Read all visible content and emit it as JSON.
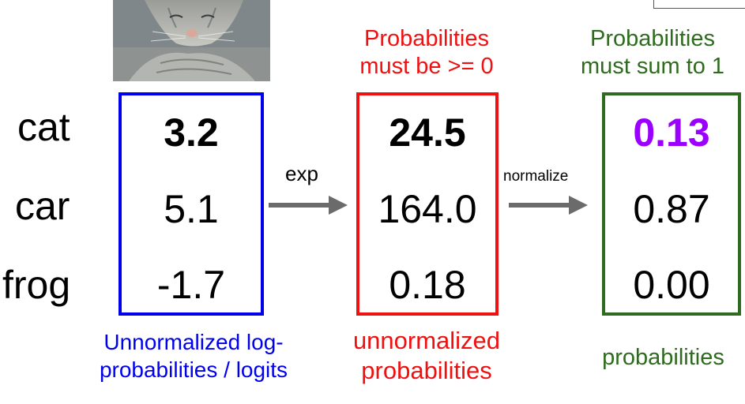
{
  "rows": [
    "cat",
    "car",
    "frog"
  ],
  "logits": [
    "3.2",
    "5.1",
    "-1.7"
  ],
  "exp_values": [
    "24.5",
    "164.0",
    "0.18"
  ],
  "probabilities": [
    "0.13",
    "0.87",
    "0.00"
  ],
  "arrows": {
    "exp": "exp",
    "normalize": "normalize"
  },
  "captions": {
    "top_red_line1": "Probabilities",
    "top_red_line2": "must be >= 0",
    "top_green_line1": "Probabilities",
    "top_green_line2": "must sum to 1",
    "bottom_blue_line1": "Unnormalized log-",
    "bottom_blue_line2": "probabilities / logits",
    "bottom_red_line1": "unnormalized",
    "bottom_red_line2": "probabilities",
    "bottom_green": "probabilities"
  },
  "colors": {
    "blue": "#0000ee",
    "red": "#ee1111",
    "green": "#2e6b1e",
    "purple": "#9b00ff",
    "arrow": "#6b6b6b"
  },
  "image": {
    "subject": "cat-photo"
  }
}
